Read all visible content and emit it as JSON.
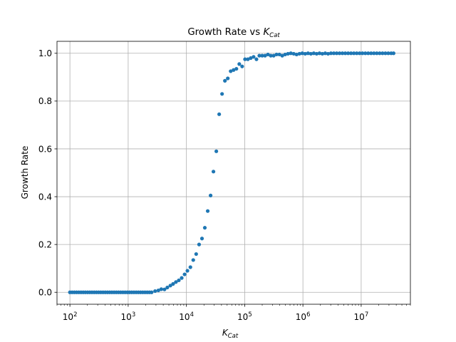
{
  "chart_data": {
    "type": "scatter",
    "title": {
      "main": "Growth Rate vs ",
      "math_base": "K",
      "math_sub": "Cat"
    },
    "xlabel": {
      "math_base": "K",
      "math_sub": "Cat"
    },
    "ylabel": "Growth Rate",
    "x_scale": "log",
    "xlim": [
      60,
      70000000
    ],
    "ylim": [
      -0.05,
      1.05
    ],
    "grid": true,
    "marker_color": "#1f77b4",
    "x_ticks": [
      {
        "base": "10",
        "exp": "2",
        "value": 100
      },
      {
        "base": "10",
        "exp": "3",
        "value": 1000
      },
      {
        "base": "10",
        "exp": "4",
        "value": 10000
      },
      {
        "base": "10",
        "exp": "5",
        "value": 100000
      },
      {
        "base": "10",
        "exp": "6",
        "value": 1000000
      },
      {
        "base": "10",
        "exp": "7",
        "value": 10000000
      }
    ],
    "y_ticks": [
      {
        "label": "0.0",
        "value": 0.0
      },
      {
        "label": "0.2",
        "value": 0.2
      },
      {
        "label": "0.4",
        "value": 0.4
      },
      {
        "label": "0.6",
        "value": 0.6
      },
      {
        "label": "0.8",
        "value": 0.8
      },
      {
        "label": "1.0",
        "value": 1.0
      }
    ],
    "points": [
      [
        100,
        0.0
      ],
      [
        109,
        0.0
      ],
      [
        119,
        0.0
      ],
      [
        130,
        0.0
      ],
      [
        142,
        0.0
      ],
      [
        155,
        0.0
      ],
      [
        169,
        0.0
      ],
      [
        184,
        0.0
      ],
      [
        201,
        0.0
      ],
      [
        219,
        0.0
      ],
      [
        239,
        0.0
      ],
      [
        261,
        0.0
      ],
      [
        285,
        0.0
      ],
      [
        311,
        0.0
      ],
      [
        339,
        0.0
      ],
      [
        370,
        0.0
      ],
      [
        404,
        0.0
      ],
      [
        441,
        0.0
      ],
      [
        481,
        0.0
      ],
      [
        525,
        0.0
      ],
      [
        573,
        0.0
      ],
      [
        625,
        0.0
      ],
      [
        682,
        0.0
      ],
      [
        744,
        0.0
      ],
      [
        812,
        0.0
      ],
      [
        886,
        0.0
      ],
      [
        967,
        0.0
      ],
      [
        1055,
        0.0
      ],
      [
        1151,
        0.0
      ],
      [
        1256,
        0.0
      ],
      [
        1371,
        0.0
      ],
      [
        1496,
        0.0
      ],
      [
        1632,
        0.0
      ],
      [
        1781,
        0.0
      ],
      [
        1944,
        0.0
      ],
      [
        2121,
        0.0
      ],
      [
        2315,
        0.0
      ],
      [
        2526,
        0.0
      ],
      [
        2900,
        0.005
      ],
      [
        3300,
        0.008
      ],
      [
        3700,
        0.013
      ],
      [
        4200,
        0.012
      ],
      [
        4700,
        0.02
      ],
      [
        5300,
        0.028
      ],
      [
        5900,
        0.035
      ],
      [
        6600,
        0.043
      ],
      [
        7400,
        0.05
      ],
      [
        8300,
        0.06
      ],
      [
        9300,
        0.075
      ],
      [
        10400,
        0.09
      ],
      [
        11700,
        0.105
      ],
      [
        13100,
        0.135
      ],
      [
        14700,
        0.16
      ],
      [
        16500,
        0.2
      ],
      [
        18500,
        0.225
      ],
      [
        20700,
        0.27
      ],
      [
        23200,
        0.34
      ],
      [
        26000,
        0.405
      ],
      [
        29100,
        0.505
      ],
      [
        32600,
        0.59
      ],
      [
        36500,
        0.745
      ],
      [
        40900,
        0.83
      ],
      [
        45800,
        0.885
      ],
      [
        51300,
        0.895
      ],
      [
        57500,
        0.925
      ],
      [
        64400,
        0.93
      ],
      [
        72100,
        0.935
      ],
      [
        80800,
        0.955
      ],
      [
        90500,
        0.945
      ],
      [
        101400,
        0.975
      ],
      [
        113500,
        0.975
      ],
      [
        127100,
        0.98
      ],
      [
        142300,
        0.985
      ],
      [
        159400,
        0.975
      ],
      [
        178500,
        0.99
      ],
      [
        199900,
        0.99
      ],
      [
        223800,
        0.99
      ],
      [
        250700,
        0.995
      ],
      [
        280800,
        0.99
      ],
      [
        314400,
        0.99
      ],
      [
        352100,
        0.995
      ],
      [
        394300,
        0.995
      ],
      [
        441600,
        0.99
      ],
      [
        494600,
        0.995
      ],
      [
        553900,
        0.998
      ],
      [
        620300,
        1.0
      ],
      [
        694700,
        0.998
      ],
      [
        778000,
        0.995
      ],
      [
        871300,
        0.998
      ],
      [
        975800,
        1.0
      ],
      [
        1093000,
        0.998
      ],
      [
        1224000,
        1.0
      ],
      [
        1371000,
        0.998
      ],
      [
        1535000,
        1.0
      ],
      [
        1719000,
        0.998
      ],
      [
        1925000,
        1.0
      ],
      [
        2156000,
        0.998
      ],
      [
        2415000,
        1.0
      ],
      [
        2705000,
        0.998
      ],
      [
        3029000,
        1.0
      ],
      [
        3393000,
        1.0
      ],
      [
        3800000,
        1.0
      ],
      [
        4255000,
        1.0
      ],
      [
        4766000,
        1.0
      ],
      [
        5338000,
        1.0
      ],
      [
        5978000,
        1.0
      ],
      [
        6695000,
        1.0
      ],
      [
        7498000,
        1.0
      ],
      [
        8398000,
        1.0
      ],
      [
        9405000,
        1.0
      ],
      [
        10530000,
        1.0
      ],
      [
        11800000,
        1.0
      ],
      [
        13210000,
        1.0
      ],
      [
        14800000,
        1.0
      ],
      [
        16570000,
        1.0
      ],
      [
        18560000,
        1.0
      ],
      [
        20790000,
        1.0
      ],
      [
        23280000,
        1.0
      ],
      [
        26080000,
        1.0
      ],
      [
        29200000,
        1.0
      ],
      [
        32710000,
        1.0
      ],
      [
        36000000,
        1.0
      ]
    ]
  }
}
